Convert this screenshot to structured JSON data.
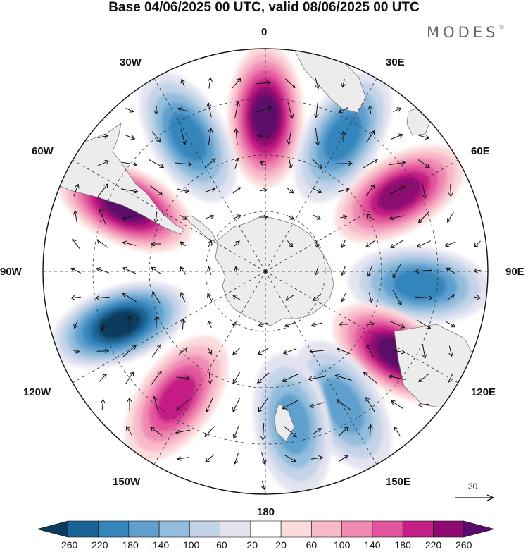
{
  "title": "Base 04/06/2025 00 UTC, valid 08/06/2025 00 UTC",
  "brand": {
    "text": "MODES",
    "mark": "®"
  },
  "map": {
    "projection": "south-polar-stereographic",
    "longitude_labels": {
      "top": "0",
      "right": "90E",
      "bottom": "180",
      "left": "90W",
      "lon30w": "30W",
      "lon30e": "30E",
      "lon60w": "60W",
      "lon60e": "60E",
      "lon120w": "120W",
      "lon120e": "120E",
      "lon150w": "150W",
      "lon150e": "150E"
    },
    "land_color": "#ededed",
    "anomaly_centers": [
      {
        "sign": "positive",
        "value": 260,
        "bearing_deg": 0
      },
      {
        "sign": "negative",
        "value": -200,
        "bearing_deg": 30
      },
      {
        "sign": "positive",
        "value": 240,
        "bearing_deg": 60
      },
      {
        "sign": "negative",
        "value": -200,
        "bearing_deg": 95
      },
      {
        "sign": "positive",
        "value": 260,
        "bearing_deg": 122
      },
      {
        "sign": "negative",
        "value": -160,
        "bearing_deg": 150
      },
      {
        "sign": "negative",
        "value": -140,
        "bearing_deg": 170
      },
      {
        "sign": "positive",
        "value": 200,
        "bearing_deg": 215
      },
      {
        "sign": "negative",
        "value": -260,
        "bearing_deg": 250
      },
      {
        "sign": "positive",
        "value": 260,
        "bearing_deg": 295
      },
      {
        "sign": "negative",
        "value": -180,
        "bearing_deg": 330
      }
    ],
    "wind_reference": {
      "value": "30"
    }
  },
  "colorbar": {
    "ticks": [
      "-260",
      "-220",
      "-180",
      "-140",
      "-100",
      "-60",
      "-20",
      "20",
      "60",
      "100",
      "140",
      "180",
      "220",
      "260"
    ],
    "colors": [
      "#0d3b5e",
      "#1b6596",
      "#3585bd",
      "#5fa0cf",
      "#92bddc",
      "#c3d3e8",
      "#e4e4f1",
      "#ffffff",
      "#fbdcdc",
      "#f8b9c9",
      "#f08ab3",
      "#e3559c",
      "#c41f84",
      "#8e0a73",
      "#5b0b6b"
    ]
  }
}
